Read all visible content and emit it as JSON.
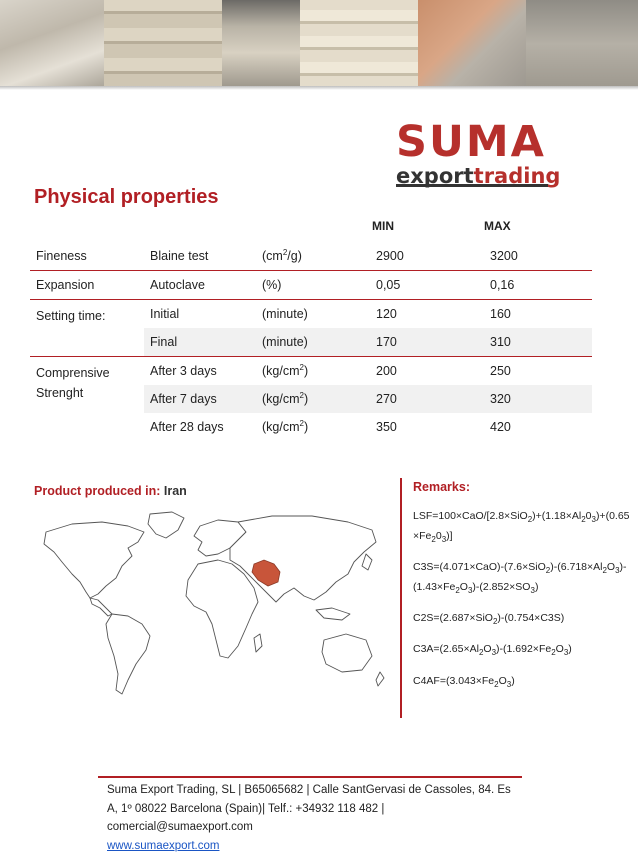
{
  "brand": {
    "top": "SUMA",
    "bottom_a": "export",
    "bottom_b": "trading"
  },
  "section_title": "Physical properties",
  "columns": {
    "min": "MIN",
    "max": "MAX"
  },
  "table": {
    "fineness": {
      "name": "Fineness",
      "test": "Blaine test",
      "unit_pre": "(cm",
      "unit_sup": "2",
      "unit_post": "/g)",
      "min": "2900",
      "max": "3200"
    },
    "expansion": {
      "name": "Expansion",
      "test": "Autoclave",
      "unit": "(%)",
      "min": "0,05",
      "max": "0,16"
    },
    "setting": {
      "name": "Setting time:",
      "initial": {
        "test": "Initial",
        "unit": "(minute)",
        "min": "120",
        "max": "160"
      },
      "final": {
        "test": "Final",
        "unit": "(minute)",
        "min": "170",
        "max": "310"
      }
    },
    "strength": {
      "name_line1": "Comprensive",
      "name_line2": "Strenght",
      "unit_pre": "(kg/cm",
      "unit_sup": "2",
      "unit_post": ")",
      "rows": [
        {
          "test": "After 3 days",
          "min": "200",
          "max": "250"
        },
        {
          "test": "After 7 days",
          "min": "270",
          "max": "320"
        },
        {
          "test": "After 28 days",
          "min": "350",
          "max": "420"
        }
      ]
    }
  },
  "produced": {
    "label": "Product produced in",
    "colon": ": ",
    "value": "Iran"
  },
  "remarks_title": "Remarks:",
  "footer": {
    "line1": "Suma Export Trading, SL | B65065682 | Calle SantGervasi de Cassoles, 84. Es",
    "line2": "A, 1º 08022 Barcelona (Spain)| Telf.: +34932 118 482 |",
    "line3": "comercial@sumaexport.com",
    "link": "www.sumaexport.com"
  },
  "colors": {
    "accent": "#b11f24",
    "logo_red": "#b6302c",
    "link": "#1a55c4",
    "map_land": "#ffffff",
    "map_outline": "#555555",
    "map_highlight": "#c8553a"
  }
}
